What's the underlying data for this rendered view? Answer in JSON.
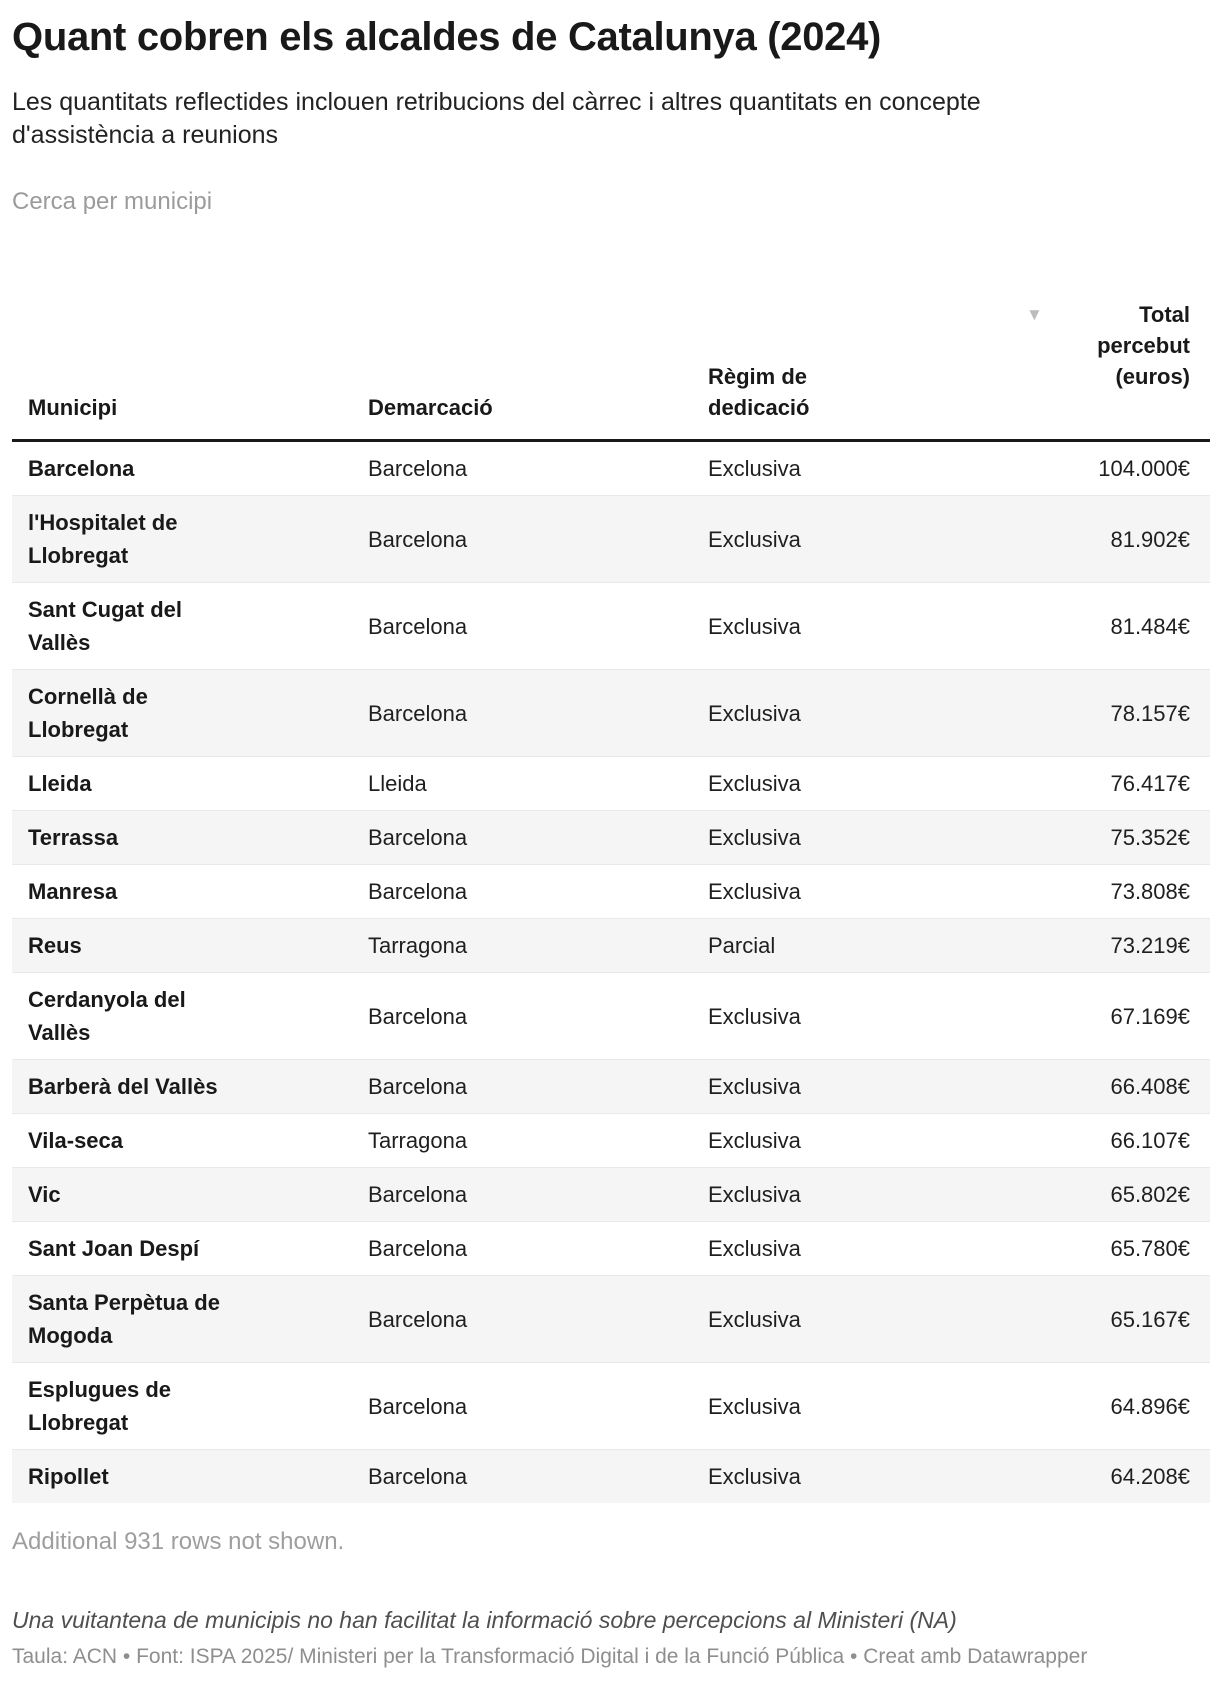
{
  "header": {
    "title": "Quant cobren els alcaldes de Catalunya (2024)",
    "subtitle": "Les quantitats reflectides inclouen retribucions del càrrec i altres quantitats en concepte\nd'assistència a reunions"
  },
  "search": {
    "placeholder": "Cerca per municipi"
  },
  "table": {
    "sort_icon": "▼",
    "columns": [
      {
        "label": "Municipi"
      },
      {
        "label": "Demarcació"
      },
      {
        "label": "Règim de\ndedicació"
      },
      {
        "label": "Total percebut\n(euros)",
        "sorted": "desc"
      }
    ],
    "rows": [
      {
        "municipi": "Barcelona",
        "demarcacio": "Barcelona",
        "regim": "Exclusiva",
        "total": "104.000€"
      },
      {
        "municipi": "l'Hospitalet de\nLlobregat",
        "demarcacio": "Barcelona",
        "regim": "Exclusiva",
        "total": "81.902€"
      },
      {
        "municipi": "Sant Cugat del\nVallès",
        "demarcacio": "Barcelona",
        "regim": "Exclusiva",
        "total": "81.484€"
      },
      {
        "municipi": "Cornellà de\nLlobregat",
        "demarcacio": "Barcelona",
        "regim": "Exclusiva",
        "total": "78.157€"
      },
      {
        "municipi": "Lleida",
        "demarcacio": "Lleida",
        "regim": "Exclusiva",
        "total": "76.417€"
      },
      {
        "municipi": "Terrassa",
        "demarcacio": "Barcelona",
        "regim": "Exclusiva",
        "total": "75.352€"
      },
      {
        "municipi": "Manresa",
        "demarcacio": "Barcelona",
        "regim": "Exclusiva",
        "total": "73.808€"
      },
      {
        "municipi": "Reus",
        "demarcacio": "Tarragona",
        "regim": "Parcial",
        "total": "73.219€"
      },
      {
        "municipi": "Cerdanyola del\nVallès",
        "demarcacio": "Barcelona",
        "regim": "Exclusiva",
        "total": "67.169€"
      },
      {
        "municipi": "Barberà del Vallès",
        "demarcacio": "Barcelona",
        "regim": "Exclusiva",
        "total": "66.408€"
      },
      {
        "municipi": "Vila-seca",
        "demarcacio": "Tarragona",
        "regim": "Exclusiva",
        "total": "66.107€"
      },
      {
        "municipi": "Vic",
        "demarcacio": "Barcelona",
        "regim": "Exclusiva",
        "total": "65.802€"
      },
      {
        "municipi": "Sant Joan Despí",
        "demarcacio": "Barcelona",
        "regim": "Exclusiva",
        "total": "65.780€"
      },
      {
        "municipi": "Santa Perpètua de\nMogoda",
        "demarcacio": "Barcelona",
        "regim": "Exclusiva",
        "total": "65.167€"
      },
      {
        "municipi": "Esplugues de\nLlobregat",
        "demarcacio": "Barcelona",
        "regim": "Exclusiva",
        "total": "64.896€"
      },
      {
        "municipi": "Ripollet",
        "demarcacio": "Barcelona",
        "regim": "Exclusiva",
        "total": "64.208€"
      }
    ],
    "more_note": "Additional 931 rows not shown."
  },
  "notes": {
    "annotation": "Una vuitantena de municipis no han facilitat la informació sobre percepcions al Ministeri (NA)",
    "credit": "Taula: ACN • Font: ISPA 2025/ Ministeri per la Transformació Digital i de la Funció Pública",
    "separator": "  • ",
    "datawrapper": "Creat amb Datawrapper"
  },
  "colors": {
    "row_stripe": "#f5f5f5",
    "header_rule": "#191919",
    "sort_icon": "#bcbcbc",
    "muted_text": "#9e9e9e"
  }
}
